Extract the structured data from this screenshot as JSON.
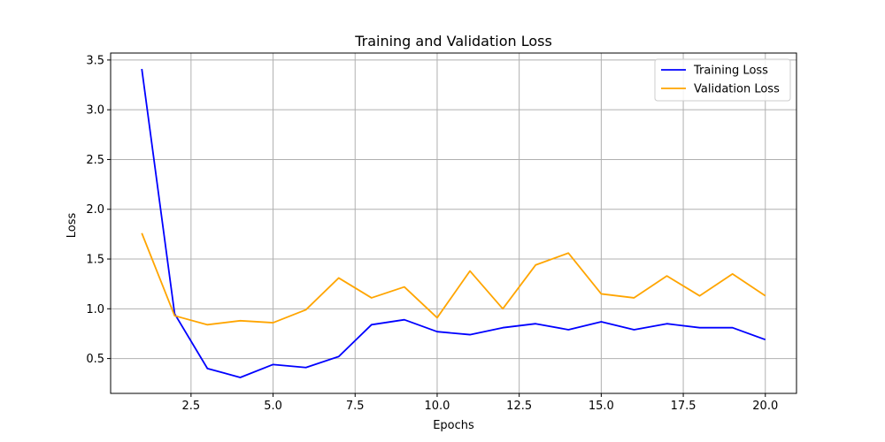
{
  "chart_data": {
    "type": "line",
    "title": "Training and Validation Loss",
    "xlabel": "Epochs",
    "ylabel": "Loss",
    "xlim": [
      0.05,
      20.95
    ],
    "ylim": [
      0.15,
      3.57
    ],
    "xticks": [
      2.5,
      5.0,
      7.5,
      10.0,
      12.5,
      15.0,
      17.5,
      20.0
    ],
    "xtick_labels": [
      "2.5",
      "5.0",
      "7.5",
      "10.0",
      "12.5",
      "15.0",
      "17.5",
      "20.0"
    ],
    "yticks": [
      0.5,
      1.0,
      1.5,
      2.0,
      2.5,
      3.0,
      3.5
    ],
    "ytick_labels": [
      "0.5",
      "1.0",
      "1.5",
      "2.0",
      "2.5",
      "3.0",
      "3.5"
    ],
    "grid": true,
    "legend_position": "top-right",
    "x": [
      1,
      2,
      3,
      4,
      5,
      6,
      7,
      8,
      9,
      10,
      11,
      12,
      13,
      14,
      15,
      16,
      17,
      18,
      19,
      20
    ],
    "series": [
      {
        "name": "Training Loss",
        "color": "#0000ff",
        "values": [
          3.41,
          0.95,
          0.4,
          0.31,
          0.44,
          0.41,
          0.52,
          0.84,
          0.89,
          0.77,
          0.74,
          0.81,
          0.85,
          0.79,
          0.87,
          0.79,
          0.85,
          0.81,
          0.81,
          0.69
        ]
      },
      {
        "name": "Validation Loss",
        "color": "#ffa500",
        "values": [
          1.76,
          0.93,
          0.84,
          0.88,
          0.86,
          0.99,
          1.31,
          1.11,
          1.22,
          0.91,
          1.38,
          1.0,
          1.44,
          1.56,
          1.15,
          1.11,
          1.33,
          1.13,
          1.35,
          1.13
        ]
      }
    ]
  }
}
